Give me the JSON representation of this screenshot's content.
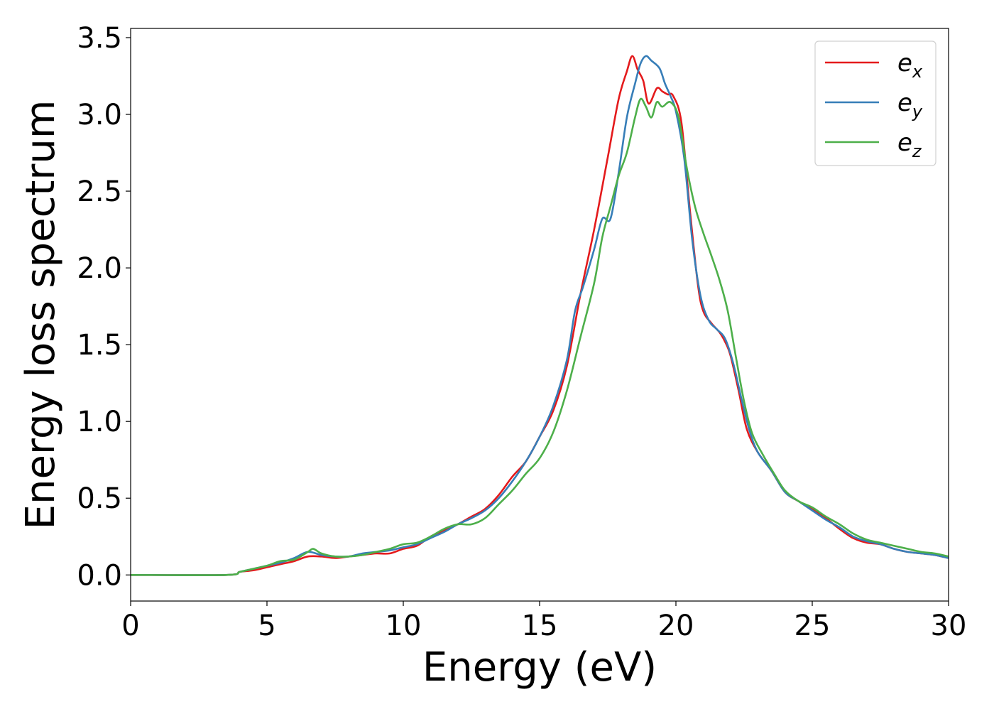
{
  "chart_data": {
    "type": "line",
    "title": "",
    "xlabel": "Energy (eV)",
    "ylabel": "Energy loss spectrum",
    "xlim": [
      0,
      30
    ],
    "ylim": [
      -0.17,
      3.56
    ],
    "xticks": [
      0,
      5,
      10,
      15,
      20,
      25,
      30
    ],
    "xtick_labels": [
      "0",
      "5",
      "10",
      "15",
      "20",
      "25",
      "30"
    ],
    "yticks": [
      0.0,
      0.5,
      1.0,
      1.5,
      2.0,
      2.5,
      3.0,
      3.5
    ],
    "ytick_labels": [
      "0.0",
      "0.5",
      "1.0",
      "1.5",
      "2.0",
      "2.5",
      "3.0",
      "3.5"
    ],
    "grid": false,
    "legend_position": "top-right",
    "series": [
      {
        "name": "e_x",
        "label_base": "e",
        "label_sub": "x",
        "color": "#e41a1c",
        "x": [
          0,
          3.5,
          4,
          4.5,
          5,
          5.5,
          6,
          6.5,
          7,
          7.5,
          8,
          8.5,
          9,
          9.5,
          10,
          10.5,
          11,
          11.5,
          12,
          12.5,
          13,
          13.5,
          14,
          14.5,
          15,
          15.5,
          16,
          16.5,
          17,
          17.5,
          17.9,
          18.2,
          18.4,
          18.6,
          18.8,
          19.0,
          19.3,
          19.5,
          19.7,
          19.9,
          20.2,
          20.5,
          20.8,
          21.0,
          21.3,
          21.6,
          21.8,
          22.0,
          22.3,
          22.6,
          23.0,
          23.5,
          24.0,
          24.5,
          25,
          25.5,
          26,
          26.5,
          27,
          27.5,
          28,
          28.5,
          29,
          29.5,
          30
        ],
        "y": [
          0.0,
          0.0,
          0.02,
          0.03,
          0.05,
          0.07,
          0.09,
          0.12,
          0.12,
          0.11,
          0.12,
          0.13,
          0.14,
          0.14,
          0.17,
          0.19,
          0.25,
          0.29,
          0.33,
          0.38,
          0.43,
          0.52,
          0.64,
          0.74,
          0.9,
          1.07,
          1.36,
          1.83,
          2.25,
          2.72,
          3.1,
          3.28,
          3.38,
          3.29,
          3.22,
          3.07,
          3.17,
          3.15,
          3.13,
          3.12,
          2.95,
          2.4,
          1.9,
          1.72,
          1.64,
          1.58,
          1.52,
          1.43,
          1.2,
          0.95,
          0.8,
          0.68,
          0.54,
          0.48,
          0.43,
          0.37,
          0.3,
          0.24,
          0.21,
          0.2,
          0.17,
          0.15,
          0.14,
          0.13,
          0.11
        ]
      },
      {
        "name": "e_y",
        "label_base": "e",
        "label_sub": "y",
        "color": "#377eb8",
        "x": [
          0,
          3.5,
          4,
          4.5,
          5,
          5.5,
          6,
          6.5,
          7,
          7.5,
          8,
          8.5,
          9,
          9.5,
          10,
          10.5,
          11,
          11.5,
          12,
          12.5,
          13,
          13.5,
          14,
          14.5,
          15,
          15.5,
          16,
          16.3,
          16.6,
          17.0,
          17.3,
          17.6,
          17.9,
          18.2,
          18.5,
          18.7,
          18.9,
          19.1,
          19.4,
          19.6,
          19.8,
          20.0,
          20.3,
          20.6,
          20.9,
          21.2,
          21.5,
          21.8,
          22.1,
          22.4,
          22.7,
          23.0,
          23.5,
          24.0,
          24.5,
          25,
          25.5,
          26,
          26.5,
          27,
          27.5,
          28,
          28.5,
          29,
          29.5,
          30
        ],
        "y": [
          0.0,
          0.0,
          0.02,
          0.04,
          0.06,
          0.08,
          0.11,
          0.15,
          0.13,
          0.12,
          0.12,
          0.14,
          0.15,
          0.16,
          0.18,
          0.2,
          0.24,
          0.28,
          0.33,
          0.37,
          0.42,
          0.5,
          0.61,
          0.74,
          0.9,
          1.1,
          1.4,
          1.72,
          1.88,
          2.12,
          2.32,
          2.32,
          2.62,
          2.98,
          3.2,
          3.33,
          3.38,
          3.35,
          3.3,
          3.2,
          3.12,
          3.02,
          2.72,
          2.18,
          1.82,
          1.66,
          1.6,
          1.54,
          1.38,
          1.15,
          0.94,
          0.8,
          0.68,
          0.54,
          0.48,
          0.42,
          0.36,
          0.31,
          0.25,
          0.22,
          0.2,
          0.17,
          0.15,
          0.14,
          0.13,
          0.11
        ]
      },
      {
        "name": "e_z",
        "label_base": "e",
        "label_sub": "z",
        "color": "#4daf4a",
        "x": [
          0,
          3.5,
          4,
          4.5,
          5,
          5.5,
          6,
          6.5,
          6.7,
          7,
          7.5,
          8,
          8.5,
          9,
          9.5,
          10,
          10.5,
          11,
          11.5,
          12,
          12.5,
          13,
          13.5,
          14,
          14.5,
          15,
          15.5,
          16,
          16.5,
          17,
          17.3,
          17.6,
          17.9,
          18.2,
          18.5,
          18.7,
          18.9,
          19.1,
          19.3,
          19.5,
          19.8,
          20.1,
          20.4,
          20.7,
          21.0,
          21.3,
          21.6,
          21.9,
          22.2,
          22.5,
          22.8,
          23.2,
          23.6,
          24.0,
          24.5,
          25,
          25.5,
          26,
          26.5,
          27,
          27.5,
          28,
          28.5,
          29,
          29.5,
          30
        ],
        "y": [
          0.0,
          0.0,
          0.02,
          0.04,
          0.06,
          0.09,
          0.1,
          0.15,
          0.17,
          0.14,
          0.12,
          0.12,
          0.13,
          0.15,
          0.17,
          0.2,
          0.21,
          0.25,
          0.3,
          0.33,
          0.33,
          0.37,
          0.46,
          0.55,
          0.66,
          0.76,
          0.93,
          1.2,
          1.55,
          1.9,
          2.2,
          2.4,
          2.6,
          2.75,
          2.98,
          3.1,
          3.05,
          2.98,
          3.08,
          3.05,
          3.08,
          2.98,
          2.65,
          2.4,
          2.23,
          2.08,
          1.92,
          1.72,
          1.42,
          1.13,
          0.92,
          0.78,
          0.66,
          0.55,
          0.48,
          0.44,
          0.38,
          0.33,
          0.27,
          0.23,
          0.21,
          0.19,
          0.17,
          0.15,
          0.14,
          0.12
        ]
      }
    ]
  }
}
